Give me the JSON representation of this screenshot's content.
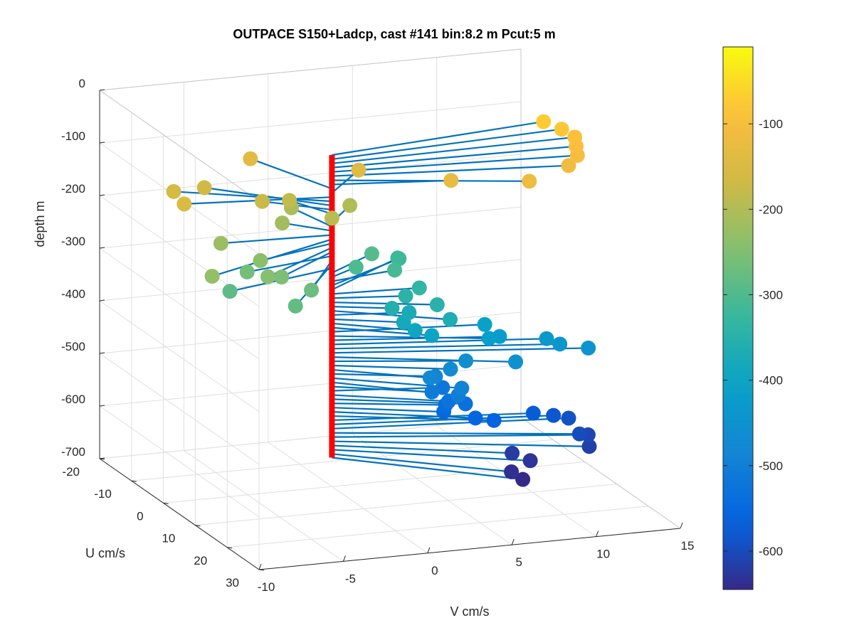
{
  "chart_data": {
    "type": "scatter",
    "title": "OUTPACE S150+Ladcp, cast #141 bin:8.2 m  Pcut:5 m",
    "xlabel": "V cm/s",
    "ylabel": "U cm/s",
    "zlabel": "depth m",
    "xlim": [
      -10,
      15
    ],
    "ylim": [
      -20,
      30
    ],
    "zlim": [
      -700,
      0
    ],
    "x_ticks": [
      "-10",
      "-5",
      "0",
      "5",
      "10",
      "15"
    ],
    "y_ticks": [
      "-20",
      "-10",
      "0",
      "10",
      "20",
      "30"
    ],
    "z_ticks": [
      "0",
      "-100",
      "-200",
      "-300",
      "-400",
      "-500",
      "-600",
      "-700"
    ],
    "colorbar": {
      "limits": [
        -645,
        -10
      ],
      "ticks": [
        "-100",
        "-200",
        "-300",
        "-400",
        "-500",
        "-600"
      ],
      "colormap": "parula"
    },
    "grid": true,
    "mast_color": "#ff0000",
    "line_color": "#0072bd",
    "profile": [
      {
        "depth": -70,
        "V": 13.5,
        "U": -5
      },
      {
        "depth": -78,
        "V": 14.2,
        "U": -3
      },
      {
        "depth": -86,
        "V": 14.6,
        "U": -1
      },
      {
        "depth": -94,
        "V": 14.3,
        "U": 1
      },
      {
        "depth": -102,
        "V": 14.0,
        "U": 3
      },
      {
        "depth": -110,
        "V": 13.1,
        "U": 5
      },
      {
        "depth": -118,
        "V": 10.2,
        "U": 8
      },
      {
        "depth": -126,
        "V": 6.5,
        "U": 3
      },
      {
        "depth": -134,
        "V": -2.0,
        "U": -15
      },
      {
        "depth": -142,
        "V": 3.1,
        "U": -8
      },
      {
        "depth": -150,
        "V": -8.2,
        "U": -3
      },
      {
        "depth": -158,
        "V": -7.5,
        "U": -10
      },
      {
        "depth": -166,
        "V": -5.3,
        "U": -12
      },
      {
        "depth": -174,
        "V": -3.0,
        "U": -6
      },
      {
        "depth": -182,
        "V": -1.2,
        "U": -7
      },
      {
        "depth": -190,
        "V": 0.0,
        "U": 0
      },
      {
        "depth": -198,
        "V": 2.2,
        "U": -6
      },
      {
        "depth": -206,
        "V": -0.7,
        "U": -9
      },
      {
        "depth": -214,
        "V": -2.0,
        "U": -5
      },
      {
        "depth": -222,
        "V": -6.4,
        "U": -1
      },
      {
        "depth": -230,
        "V": -9.0,
        "U": 10
      },
      {
        "depth": -238,
        "V": -5.0,
        "U": 4
      },
      {
        "depth": -246,
        "V": -5.5,
        "U": 9
      },
      {
        "depth": -254,
        "V": -4.5,
        "U": 8
      },
      {
        "depth": -262,
        "V": -5.6,
        "U": 3
      },
      {
        "depth": -270,
        "V": -3.3,
        "U": 11
      },
      {
        "depth": -278,
        "V": -5.0,
        "U": 15
      },
      {
        "depth": -286,
        "V": -7.0,
        "U": 5
      },
      {
        "depth": -294,
        "V": 3.5,
        "U": -6
      },
      {
        "depth": -302,
        "V": 2.0,
        "U": -3
      },
      {
        "depth": -310,
        "V": 4.1,
        "U": -2
      },
      {
        "depth": -318,
        "V": 5.5,
        "U": -8
      },
      {
        "depth": -326,
        "V": 5.8,
        "U": -10
      },
      {
        "depth": -334,
        "V": 5.0,
        "U": 1
      },
      {
        "depth": -342,
        "V": 4.0,
        "U": 2
      },
      {
        "depth": -350,
        "V": 5.3,
        "U": 5
      },
      {
        "depth": -358,
        "V": 3.0,
        "U": 3
      },
      {
        "depth": -366,
        "V": 5.5,
        "U": 8
      },
      {
        "depth": -374,
        "V": 4.2,
        "U": 2
      },
      {
        "depth": -382,
        "V": 3.5,
        "U": 4
      },
      {
        "depth": -390,
        "V": 3.8,
        "U": 6
      },
      {
        "depth": -398,
        "V": 4.6,
        "U": 7
      },
      {
        "depth": -406,
        "V": 8.5,
        "U": 3
      },
      {
        "depth": -414,
        "V": 8.0,
        "U": 7
      },
      {
        "depth": -422,
        "V": 9.0,
        "U": 5
      },
      {
        "depth": -430,
        "V": 11.6,
        "U": 6
      },
      {
        "depth": -438,
        "V": 12.2,
        "U": 7
      },
      {
        "depth": -446,
        "V": 13.7,
        "U": 8
      },
      {
        "depth": -454,
        "V": 9.2,
        "U": 9
      },
      {
        "depth": -462,
        "V": 7.0,
        "U": 5
      },
      {
        "depth": -470,
        "V": 5.9,
        "U": 6
      },
      {
        "depth": -478,
        "V": 4.5,
        "U": 7
      },
      {
        "depth": -486,
        "V": 5.2,
        "U": 5
      },
      {
        "depth": -494,
        "V": 6.0,
        "U": 9
      },
      {
        "depth": -502,
        "V": 5.6,
        "U": 10
      },
      {
        "depth": -510,
        "V": 4.8,
        "U": 6
      },
      {
        "depth": -518,
        "V": 6.0,
        "U": 3
      },
      {
        "depth": -526,
        "V": 5.6,
        "U": 7
      },
      {
        "depth": -534,
        "V": 6.6,
        "U": 7
      },
      {
        "depth": -542,
        "V": 5.8,
        "U": 5
      },
      {
        "depth": -550,
        "V": 5.5,
        "U": 6
      },
      {
        "depth": -558,
        "V": 7.0,
        "U": 8
      },
      {
        "depth": -566,
        "V": 8.1,
        "U": 8
      },
      {
        "depth": -574,
        "V": 11.0,
        "U": 5
      },
      {
        "depth": -582,
        "V": 12.2,
        "U": 5
      },
      {
        "depth": -590,
        "V": 13.1,
        "U": 5
      },
      {
        "depth": -598,
        "V": 12.8,
        "U": 10
      },
      {
        "depth": -606,
        "V": 13.5,
        "U": 9
      },
      {
        "depth": -614,
        "V": 13.0,
        "U": 12
      },
      {
        "depth": -622,
        "V": 8.8,
        "U": 10
      },
      {
        "depth": -630,
        "V": 9.5,
        "U": 12
      },
      {
        "depth": -638,
        "V": 8.0,
        "U": 14
      },
      {
        "depth": -645,
        "V": 8.3,
        "U": 16
      }
    ]
  }
}
